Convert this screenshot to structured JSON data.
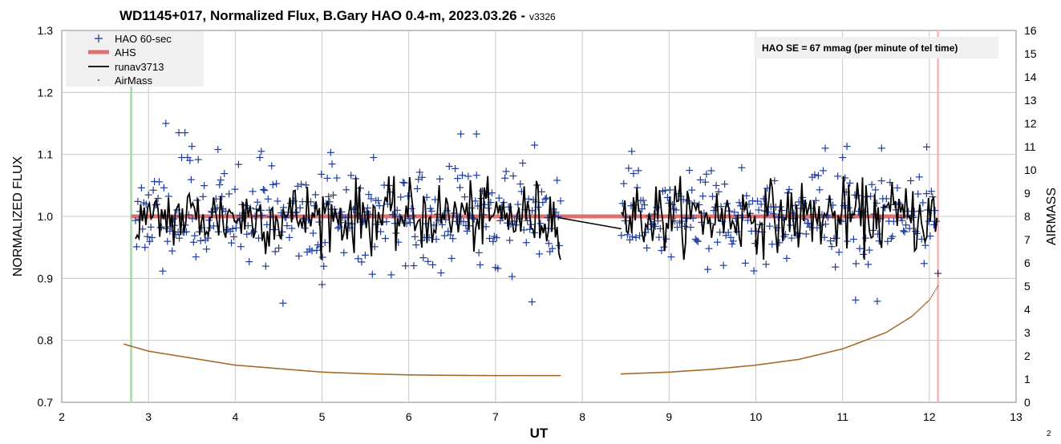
{
  "chart_data": {
    "type": "scatter",
    "title": "WD1145+017, Normalized Flux, B.Gary HAO 0.4-m, 2023.03.26 -",
    "title_version": "v3326",
    "xlabel": "UT",
    "ylabel": "NORMALIZED FLUX",
    "y2label": "AIRMASS",
    "xlim": [
      2,
      13
    ],
    "ylim": [
      0.7,
      1.3
    ],
    "y2lim": [
      0,
      16
    ],
    "x_ticks": [
      2,
      3,
      4,
      5,
      6,
      7,
      8,
      9,
      10,
      11,
      12,
      13
    ],
    "y_ticks": [
      0.7,
      0.8,
      0.9,
      1.0,
      1.1,
      1.2,
      1.3
    ],
    "y_tick_labels": [
      "0.7",
      "0.8",
      "0.9",
      "1.0",
      "1.1",
      "1.2",
      "1.3"
    ],
    "y2_ticks": [
      0,
      1,
      2,
      3,
      4,
      5,
      6,
      7,
      8,
      9,
      10,
      11,
      12,
      13,
      14,
      15,
      16
    ],
    "grid": true,
    "legend_position": "top-left",
    "legend": [
      {
        "label": "HAO 60-sec",
        "style": "plus",
        "color": "#1f3c99"
      },
      {
        "label": "AHS",
        "style": "thick-line",
        "color": "#e07070"
      },
      {
        "label": "runav3713",
        "style": "line",
        "color": "#000000"
      },
      {
        "label": "AirMass",
        "style": "dot",
        "color": "#a0641e"
      }
    ],
    "annotation": "HAO SE =  67 mmag (per minute of tel time)",
    "corner_label": "2",
    "colors": {
      "flux": "#1f3c99",
      "ahs": "#e07070",
      "runav": "#000000",
      "airmass": "#a0641e",
      "start_line": "#a8d8a8",
      "end_line": "#f0b8b8",
      "grid": "#c8c8c8"
    },
    "series": [
      {
        "name": "HAO 60-sec",
        "segments": [
          {
            "x_start": 2.85,
            "x_end": 7.75,
            "count": 360
          },
          {
            "x_start": 8.45,
            "x_end": 12.08,
            "count": 260
          }
        ],
        "mean": 1.0,
        "scatter": 0.045,
        "highlighted_points": [
          {
            "x": 3.2,
            "y": 1.15
          },
          {
            "x": 3.35,
            "y": 1.135
          },
          {
            "x": 3.42,
            "y": 1.135
          },
          {
            "x": 3.5,
            "y": 1.113
          },
          {
            "x": 3.8,
            "y": 1.108
          },
          {
            "x": 4.3,
            "y": 1.105
          },
          {
            "x": 5.1,
            "y": 1.103
          },
          {
            "x": 6.6,
            "y": 1.133
          },
          {
            "x": 6.78,
            "y": 1.133
          },
          {
            "x": 7.45,
            "y": 1.115
          },
          {
            "x": 8.57,
            "y": 1.105
          },
          {
            "x": 10.8,
            "y": 1.11
          },
          {
            "x": 11.05,
            "y": 1.113
          },
          {
            "x": 11.45,
            "y": 1.11
          },
          {
            "x": 11.97,
            "y": 1.112
          },
          {
            "x": 4.55,
            "y": 0.86
          },
          {
            "x": 7.42,
            "y": 0.862
          },
          {
            "x": 11.15,
            "y": 0.865
          },
          {
            "x": 11.4,
            "y": 0.863
          },
          {
            "x": 5.0,
            "y": 0.89
          },
          {
            "x": 12.1,
            "y": 0.908
          }
        ]
      },
      {
        "name": "AHS",
        "x": [
          2.8,
          11.8
        ],
        "y": [
          1.0,
          1.0
        ]
      },
      {
        "name": "runav3713",
        "segments": [
          {
            "x_start": 2.85,
            "x_end": 7.75,
            "step": 0.02
          },
          {
            "x_start": 8.45,
            "x_end": 12.1,
            "step": 0.02
          }
        ],
        "bridge": [
          {
            "x": 7.72,
            "y": 0.998
          },
          {
            "x": 8.45,
            "y": 0.98
          }
        ]
      },
      {
        "name": "AirMass",
        "axis": "secondary",
        "points": [
          {
            "x": 2.72,
            "y": 2.5
          },
          {
            "x": 3.0,
            "y": 2.2
          },
          {
            "x": 3.5,
            "y": 1.9
          },
          {
            "x": 4.0,
            "y": 1.6
          },
          {
            "x": 4.5,
            "y": 1.45
          },
          {
            "x": 5.0,
            "y": 1.3
          },
          {
            "x": 5.5,
            "y": 1.23
          },
          {
            "x": 6.0,
            "y": 1.18
          },
          {
            "x": 6.5,
            "y": 1.16
          },
          {
            "x": 7.0,
            "y": 1.15
          },
          {
            "x": 7.5,
            "y": 1.15
          },
          {
            "x": 7.75,
            "y": 1.15
          },
          {
            "x": 8.45,
            "y": 1.22
          },
          {
            "x": 9.0,
            "y": 1.3
          },
          {
            "x": 9.5,
            "y": 1.42
          },
          {
            "x": 10.0,
            "y": 1.6
          },
          {
            "x": 10.5,
            "y": 1.85
          },
          {
            "x": 11.0,
            "y": 2.3
          },
          {
            "x": 11.5,
            "y": 3.0
          },
          {
            "x": 11.8,
            "y": 3.7
          },
          {
            "x": 12.0,
            "y": 4.4
          },
          {
            "x": 12.1,
            "y": 5.0
          }
        ]
      }
    ],
    "vertical_markers": [
      {
        "x": 2.8,
        "color": "#a8d8a8"
      },
      {
        "x": 12.1,
        "color": "#f0b8b8"
      }
    ]
  }
}
